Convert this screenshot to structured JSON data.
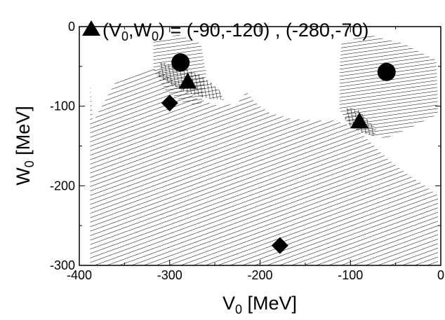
{
  "chart_data": {
    "type": "scatter",
    "title_marker": "triangle",
    "title_text": "(V0,W0) = (-90,-120) , (-280,-70)",
    "xlabel": "V0 [MeV]",
    "ylabel": "W0 [MeV]",
    "xlim": [
      -400,
      0
    ],
    "ylim": [
      -300,
      0
    ],
    "x_ticks": [
      -400,
      -300,
      -200,
      -100,
      0
    ],
    "y_ticks": [
      0,
      -100,
      -200,
      -300
    ],
    "grid": false,
    "regions": [
      {
        "pattern": "diagonal-hatch",
        "points": [
          [
            -388,
            -70
          ],
          [
            -385,
            -120
          ],
          [
            -360,
            -70
          ],
          [
            -340,
            -58
          ],
          [
            -320,
            -52
          ],
          [
            -305,
            -58
          ],
          [
            -290,
            -75
          ],
          [
            -270,
            -90
          ],
          [
            -245,
            -100
          ],
          [
            -225,
            -96
          ],
          [
            -215,
            -82
          ],
          [
            -205,
            -96
          ],
          [
            -190,
            -108
          ],
          [
            -165,
            -116
          ],
          [
            -140,
            -118
          ],
          [
            -118,
            -118
          ],
          [
            -95,
            -126
          ],
          [
            -78,
            -145
          ],
          [
            -60,
            -165
          ],
          [
            -40,
            -183
          ],
          [
            -20,
            -198
          ],
          [
            -3,
            -212
          ],
          [
            -3,
            -300
          ],
          [
            -388,
            -300
          ]
        ]
      },
      {
        "pattern": "horizontal-lines",
        "points": [
          [
            -318,
            -18
          ],
          [
            -290,
            -10
          ],
          [
            -265,
            -22
          ],
          [
            -260,
            -60
          ],
          [
            -265,
            -100
          ],
          [
            -285,
            -95
          ],
          [
            -305,
            -80
          ],
          [
            -318,
            -55
          ]
        ]
      },
      {
        "pattern": "cross-hatch",
        "points": [
          [
            -310,
            -45
          ],
          [
            -290,
            -50
          ],
          [
            -268,
            -60
          ],
          [
            -255,
            -70
          ],
          [
            -245,
            -80
          ],
          [
            -240,
            -92
          ],
          [
            -260,
            -90
          ],
          [
            -282,
            -82
          ],
          [
            -300,
            -72
          ],
          [
            -313,
            -62
          ]
        ]
      },
      {
        "pattern": "horizontal-lines",
        "points": [
          [
            -110,
            -20
          ],
          [
            -80,
            -10
          ],
          [
            -40,
            -22
          ],
          [
            -5,
            -42
          ],
          [
            -3,
            -110
          ],
          [
            -30,
            -125
          ],
          [
            -60,
            -140
          ],
          [
            -75,
            -138
          ],
          [
            -100,
            -125
          ],
          [
            -112,
            -105
          ],
          [
            -112,
            -55
          ]
        ]
      },
      {
        "pattern": "cross-hatch",
        "points": [
          [
            -104,
            -102
          ],
          [
            -92,
            -104
          ],
          [
            -80,
            -118
          ],
          [
            -72,
            -128
          ],
          [
            -72,
            -138
          ],
          [
            -86,
            -134
          ],
          [
            -100,
            -126
          ],
          [
            -106,
            -116
          ]
        ]
      }
    ],
    "series": [
      {
        "marker": "circle",
        "points": [
          [
            -288,
            -45
          ],
          [
            -60,
            -57
          ]
        ]
      },
      {
        "marker": "triangle",
        "points": [
          [
            -280,
            -70
          ],
          [
            -90,
            -120
          ]
        ]
      },
      {
        "marker": "diamond",
        "points": [
          [
            -300,
            -96
          ],
          [
            -178,
            -275
          ]
        ]
      }
    ]
  }
}
